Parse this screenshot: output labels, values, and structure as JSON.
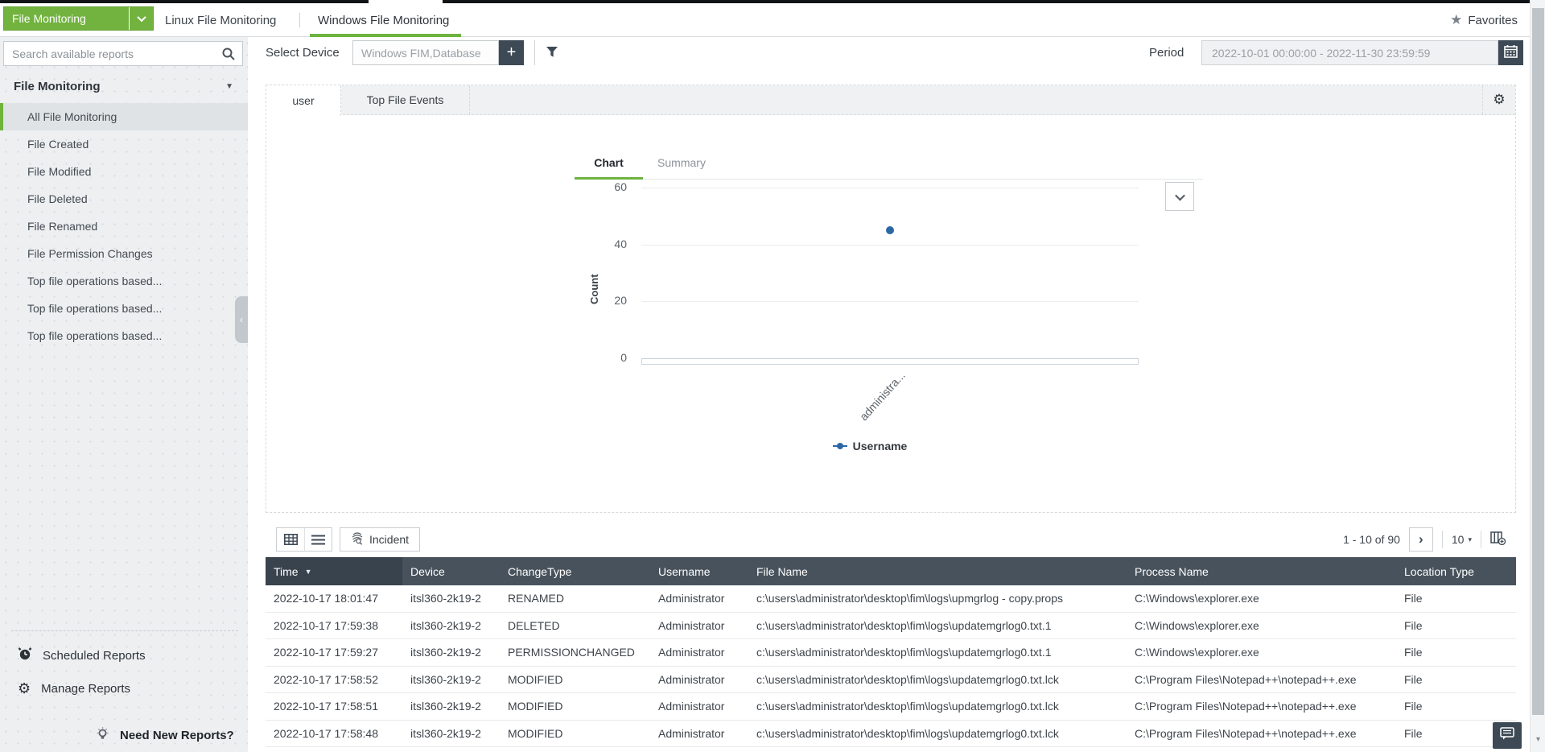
{
  "topbar": {
    "module_dropdown": "File Monitoring",
    "tabs": [
      {
        "label": "Linux File Monitoring",
        "active": false
      },
      {
        "label": "Windows File Monitoring",
        "active": true
      }
    ],
    "favorites_label": "Favorites"
  },
  "sidebar": {
    "search_placeholder": "Search available reports",
    "section_title": "File Monitoring",
    "items": [
      {
        "label": "All File Monitoring",
        "selected": true
      },
      {
        "label": "File Created",
        "selected": false
      },
      {
        "label": "File Modified",
        "selected": false
      },
      {
        "label": "File Deleted",
        "selected": false
      },
      {
        "label": "File Renamed",
        "selected": false
      },
      {
        "label": "File Permission Changes",
        "selected": false
      },
      {
        "label": "Top file operations based...",
        "selected": false
      },
      {
        "label": "Top file operations based...",
        "selected": false
      },
      {
        "label": "Top file operations based...",
        "selected": false
      }
    ],
    "footer": {
      "scheduled_reports": "Scheduled Reports",
      "manage_reports": "Manage Reports",
      "need_new_reports": "Need New Reports?"
    }
  },
  "filters": {
    "select_device_label": "Select Device",
    "device_value": "Windows FIM,Database",
    "period_label": "Period",
    "period_value": "2022-10-01 00:00:00 - 2022-11-30 23:59:59"
  },
  "report_tabs": [
    {
      "label": "user",
      "active": true
    },
    {
      "label": "Top File Events",
      "active": false
    }
  ],
  "chart_tabs": [
    {
      "label": "Chart",
      "active": true
    },
    {
      "label": "Summary",
      "active": false
    }
  ],
  "chart_data": {
    "type": "scatter",
    "categories": [
      "administra..."
    ],
    "series": [
      {
        "name": "Username",
        "values": [
          45
        ]
      }
    ],
    "title": "",
    "xlabel": "",
    "ylabel": "Count",
    "ylim": [
      0,
      60
    ],
    "yticks": [
      60,
      40,
      20,
      0
    ],
    "grid": true,
    "legend_position": "bottom",
    "point_color": "#2c67a5"
  },
  "table": {
    "toolbar": {
      "incident_label": "Incident"
    },
    "pagination": {
      "range_label": "1 - 10 of 90",
      "page_size": "10"
    },
    "columns": [
      "Time",
      "Device",
      "ChangeType",
      "Username",
      "File Name",
      "Process Name",
      "Location Type"
    ],
    "rows": [
      [
        "2022-10-17 18:01:47",
        "itsl360-2k19-2",
        "RENAMED",
        "Administrator",
        "c:\\users\\administrator\\desktop\\fim\\logs\\upmgrlog - copy.props",
        "C:\\Windows\\explorer.exe",
        "File"
      ],
      [
        "2022-10-17 17:59:38",
        "itsl360-2k19-2",
        "DELETED",
        "Administrator",
        "c:\\users\\administrator\\desktop\\fim\\logs\\updatemgrlog0.txt.1",
        "C:\\Windows\\explorer.exe",
        "File"
      ],
      [
        "2022-10-17 17:59:27",
        "itsl360-2k19-2",
        "PERMISSIONCHANGED",
        "Administrator",
        "c:\\users\\administrator\\desktop\\fim\\logs\\updatemgrlog0.txt.1",
        "C:\\Windows\\explorer.exe",
        "File"
      ],
      [
        "2022-10-17 17:58:52",
        "itsl360-2k19-2",
        "MODIFIED",
        "Administrator",
        "c:\\users\\administrator\\desktop\\fim\\logs\\updatemgrlog0.txt.lck",
        "C:\\Program Files\\Notepad++\\notepad++.exe",
        "File"
      ],
      [
        "2022-10-17 17:58:51",
        "itsl360-2k19-2",
        "MODIFIED",
        "Administrator",
        "c:\\users\\administrator\\desktop\\fim\\logs\\updatemgrlog0.txt.lck",
        "C:\\Program Files\\Notepad++\\notepad++.exe",
        "File"
      ],
      [
        "2022-10-17 17:58:48",
        "itsl360-2k19-2",
        "MODIFIED",
        "Administrator",
        "c:\\users\\administrator\\desktop\\fim\\logs\\updatemgrlog0.txt.lck",
        "C:\\Program Files\\Notepad++\\notepad++.exe",
        "File"
      ]
    ]
  },
  "icons": {
    "favorites_star": "★",
    "sort_desc": "▼",
    "section_caret": "▼",
    "caret_down": "▾",
    "next_page": "›",
    "collapse_left": "‹",
    "scroll_down": "▾",
    "plus": "+",
    "gear": "⚙"
  },
  "colors": {
    "accent_green": "#6db33f",
    "dark_slate": "#3d4a55",
    "table_header": "#47525c",
    "point_blue": "#2c67a5"
  }
}
